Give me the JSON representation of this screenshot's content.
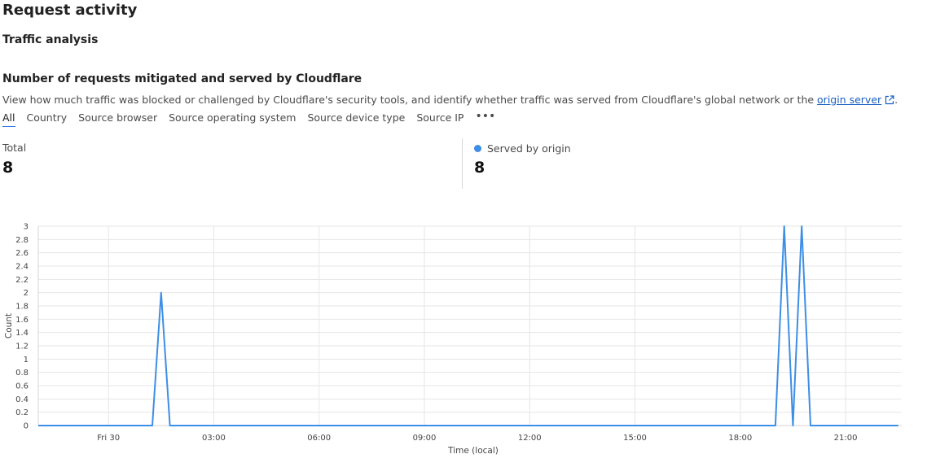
{
  "header": {
    "title": "Request activity"
  },
  "section": {
    "title": "Traffic analysis"
  },
  "card": {
    "title": "Number of requests mitigated and served by Cloudflare",
    "description_before_link": "View how much traffic was blocked or challenged by Cloudflare's security tools, and identify whether traffic was served from Cloudflare's global network or the ",
    "link_text": "origin server",
    "description_after_link": "."
  },
  "tabs": [
    {
      "label": "All",
      "active": true
    },
    {
      "label": "Country"
    },
    {
      "label": "Source browser"
    },
    {
      "label": "Source operating system"
    },
    {
      "label": "Source device type"
    },
    {
      "label": "Source IP"
    }
  ],
  "more_label": "•••",
  "stats": {
    "total_label": "Total",
    "total_value": "8",
    "served_label": "Served by origin",
    "served_value": "8",
    "served_color": "#3d8ee6"
  },
  "chart_data": {
    "type": "line",
    "xlabel": "Time (local)",
    "ylabel": "Count",
    "ylim": [
      0,
      3
    ],
    "y_ticks": [
      "0",
      "0.2",
      "0.4",
      "0.6",
      "0.8",
      "1",
      "1.2",
      "1.4",
      "1.6",
      "1.8",
      "2",
      "2.2",
      "2.4",
      "2.6",
      "2.8",
      "3"
    ],
    "x_range_hours": [
      -2,
      22.6
    ],
    "x_ticks": [
      {
        "label": "Fri 30",
        "hour": 0
      },
      {
        "label": "03:00",
        "hour": 3
      },
      {
        "label": "06:00",
        "hour": 6
      },
      {
        "label": "09:00",
        "hour": 9
      },
      {
        "label": "12:00",
        "hour": 12
      },
      {
        "label": "15:00",
        "hour": 15
      },
      {
        "label": "18:00",
        "hour": 18
      },
      {
        "label": "21:00",
        "hour": 21
      }
    ],
    "grid": true,
    "series": [
      {
        "name": "Served by origin",
        "color": "#3d8ee6",
        "points": [
          [
            -2,
            0
          ],
          [
            1.25,
            0
          ],
          [
            1.5,
            2
          ],
          [
            1.75,
            0
          ],
          [
            19.0,
            0
          ],
          [
            19.25,
            3
          ],
          [
            19.5,
            0
          ],
          [
            19.75,
            3
          ],
          [
            20.0,
            0
          ],
          [
            22.5,
            0
          ]
        ]
      }
    ]
  }
}
